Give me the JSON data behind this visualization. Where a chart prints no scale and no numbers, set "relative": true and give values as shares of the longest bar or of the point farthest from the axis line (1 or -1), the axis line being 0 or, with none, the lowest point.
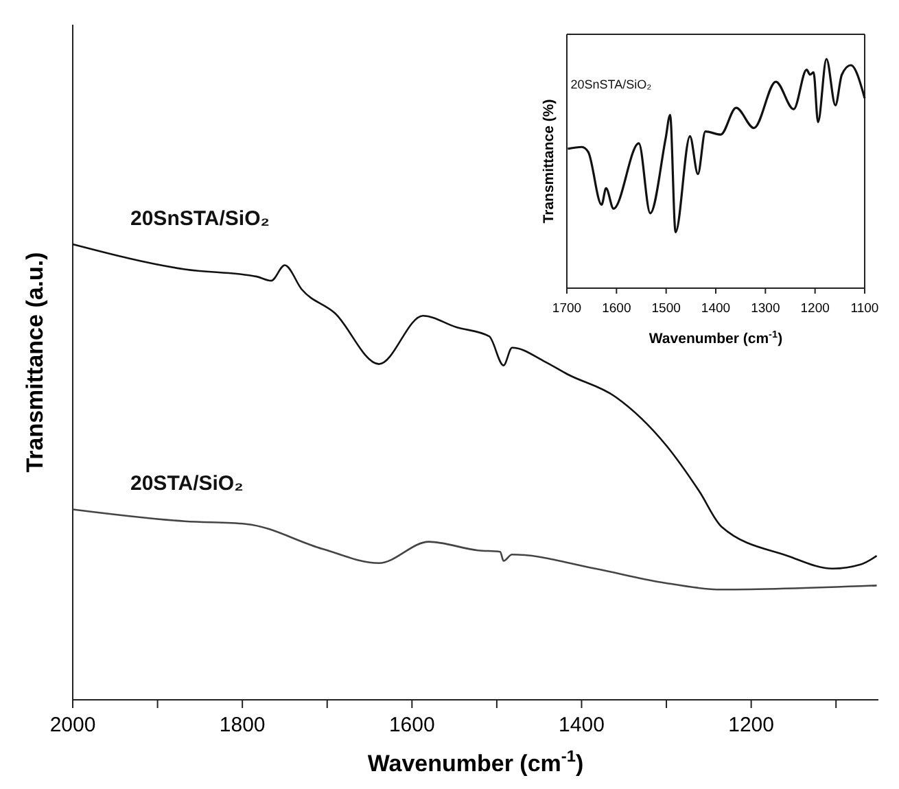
{
  "chart_data": [
    {
      "type": "line",
      "xlabel": "Wavenumber (cm$^{-1}$)",
      "ylabel": "Transmittance (a.u.)",
      "xlim": [
        2000,
        1050
      ],
      "xticks": [
        2000,
        {
          "value": 1900,
          "label": null
        },
        1800,
        {
          "value": 1700,
          "label": null
        },
        1600,
        {
          "value": 1500,
          "label": null
        },
        1400,
        {
          "value": 1300,
          "label": null
        },
        1200,
        {
          "value": 1100,
          "label": null
        }
      ],
      "relative": true,
      "tick_labels": "x",
      "series": [
        {
          "name": "20SnSTA/SiO₂",
          "color": "#111111",
          "x": [
            2000,
            1868,
            1783,
            1766,
            1750,
            1730,
            1691,
            1639,
            1587,
            1548,
            1509,
            1492,
            1482,
            1443,
            1417,
            1360,
            1300,
            1261,
            1235,
            1157,
            1104,
            1071,
            1052
          ],
          "values": [
            1.0,
            0.945,
            0.929,
            0.92,
            0.954,
            0.901,
            0.849,
            0.737,
            0.843,
            0.818,
            0.798,
            0.734,
            0.773,
            0.742,
            0.715,
            0.665,
            0.558,
            0.457,
            0.38,
            0.316,
            0.288,
            0.297,
            0.316
          ]
        },
        {
          "name": "20STA/SiO₂",
          "color": "#444444",
          "x": [
            2000,
            1868,
            1796,
            1705,
            1639,
            1580,
            1522,
            1496,
            1492,
            1482,
            1384,
            1306,
            1235,
            1052
          ],
          "values": [
            0.418,
            0.392,
            0.386,
            0.331,
            0.3,
            0.347,
            0.328,
            0.325,
            0.305,
            0.319,
            0.288,
            0.258,
            0.242,
            0.251
          ]
        }
      ]
    },
    {
      "type": "line",
      "xlabel": "Wavenumber (cm$^{-1}$)",
      "ylabel": "Transmittance (%)",
      "xlim": [
        1700,
        1100
      ],
      "xticks": [
        1700,
        1600,
        1500,
        1400,
        1300,
        1200,
        1100
      ],
      "relative": true,
      "tick_labels": "x",
      "series": [
        {
          "name": "20SnSTA/SiO₂",
          "color": "#111111",
          "x": [
            1698,
            1670,
            1657,
            1630,
            1621,
            1606,
            1555,
            1532,
            1501,
            1492,
            1481,
            1452,
            1436,
            1421,
            1390,
            1359,
            1323,
            1279,
            1243,
            1217,
            1210,
            1203,
            1194,
            1177,
            1159,
            1146,
            1128,
            1100
          ],
          "values": [
            0.608,
            0.616,
            0.595,
            0.364,
            0.436,
            0.347,
            0.632,
            0.327,
            0.653,
            0.756,
            0.244,
            0.663,
            0.498,
            0.684,
            0.67,
            0.787,
            0.699,
            0.901,
            0.781,
            0.953,
            0.932,
            0.942,
            0.725,
            1.0,
            0.798,
            0.932,
            0.973,
            0.829
          ]
        }
      ]
    }
  ]
}
